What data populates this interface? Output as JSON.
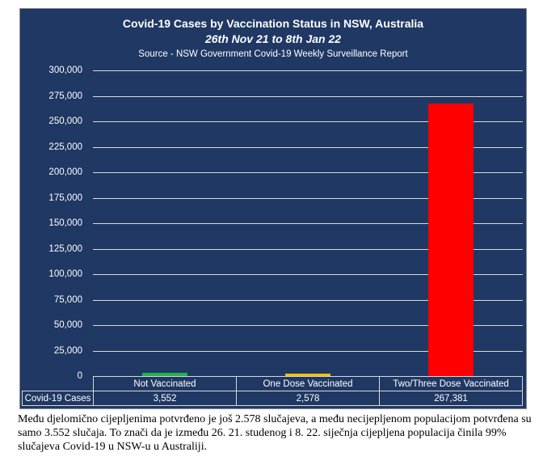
{
  "chart_data": {
    "type": "bar",
    "title": "Covid-19 Cases by Vaccination Status in NSW, Australia",
    "subtitle": "26th Nov 21 to 8th Jan 22",
    "source": "Source - NSW Government Covid-19 Weekly Surveillance Report",
    "categories": [
      "Not Vaccinated",
      "One Dose Vaccinated",
      "Two/Three Dose Vaccinated"
    ],
    "series": [
      {
        "name": "Covid-19 Cases",
        "values": [
          3552,
          2578,
          267381
        ],
        "value_labels": [
          "3,552",
          "2,578",
          "267,381"
        ]
      }
    ],
    "bar_colors": [
      "#22b14c",
      "#ffc000",
      "#ff0000"
    ],
    "ylim": [
      0,
      300000
    ],
    "yticks": [
      0,
      25000,
      50000,
      75000,
      100000,
      125000,
      150000,
      175000,
      200000,
      225000,
      250000,
      275000,
      300000
    ],
    "ytick_labels": [
      "0",
      "25,000",
      "50,000",
      "75,000",
      "100,000",
      "125,000",
      "150,000",
      "175,000",
      "200,000",
      "225,000",
      "250,000",
      "275,000",
      "300,000"
    ],
    "grid": true,
    "legend": "data table"
  },
  "caption": "Među djelomično cijepljenima potvrđeno je još 2.578 slučajeva, a među necijepljenom populacijom potvrđena su samo 3.552 slučaja. To znači da je između 26. 21. studenog i 8. 22. siječnja cijepljena populacija činila 99% slučajeva Covid-19 u NSW-u u Australiji."
}
